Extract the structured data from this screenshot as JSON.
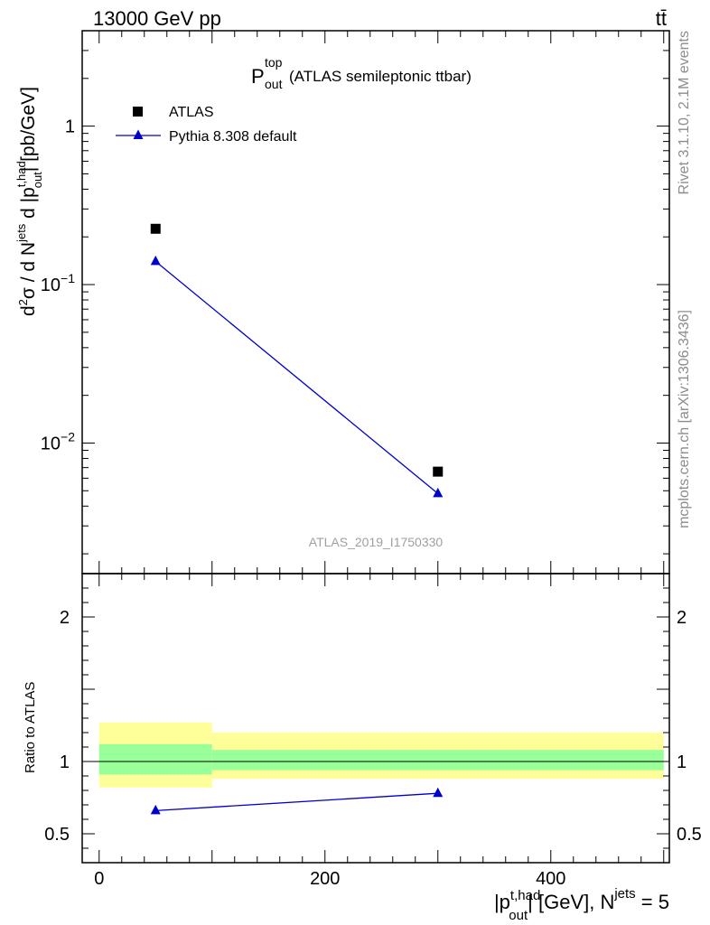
{
  "header": {
    "energy_label": "13000 GeV pp",
    "process_label": "tt̄"
  },
  "side_labels": {
    "rivet": "Rivet 3.1.10,  2.1M events",
    "mcplots": "mcplots.cern.ch [arXiv:1306.3436]"
  },
  "watermark": "ATLAS_2019_I1750330",
  "chart_data": [
    {
      "type": "scatter",
      "panel": "main",
      "title": "P_out^top (ATLAS semileptonic ttbar)",
      "title_main": "P",
      "title_sup": "top",
      "title_sub": "out",
      "title_rest": "(ATLAS semileptonic ttbar)",
      "ylabel": "d²σ / d N^jets d |p_out^t,had| [pb/GeV]",
      "y_scale": "log",
      "xlim": [
        -15,
        505
      ],
      "ylim": [
        0.0015,
        4.0
      ],
      "y_ticks": [
        {
          "value": 1,
          "label": "1"
        },
        {
          "value": 0.1,
          "label": "10^-1"
        },
        {
          "value": 0.01,
          "label": "10^-2"
        }
      ],
      "legend_position": "top-left",
      "series": [
        {
          "name": "ATLAS",
          "marker": "square",
          "color": "#000000",
          "x": [
            50,
            300
          ],
          "y": [
            0.225,
            0.0066
          ],
          "band_x_edges": [
            0,
            100,
            500
          ]
        },
        {
          "name": "Pythia 8.308 default",
          "marker": "triangle",
          "color": "#0000cc",
          "line": true,
          "x": [
            50,
            300
          ],
          "y": [
            0.14,
            0.0048
          ]
        }
      ]
    },
    {
      "type": "line",
      "panel": "ratio",
      "ylabel": "Ratio to ATLAS",
      "xlabel": "|p_out^t,had| [GeV], N^jets = 5",
      "xlim": [
        -15,
        505
      ],
      "ylim": [
        0.3,
        2.3
      ],
      "x_ticks": [
        0,
        200,
        400
      ],
      "y_ticks": [
        0.5,
        1,
        2
      ],
      "reference_line": 1.0,
      "bands": [
        {
          "x_from": 0,
          "x_to": 100,
          "stat_low": 0.91,
          "stat_high": 1.12,
          "total_low": 0.82,
          "total_high": 1.27
        },
        {
          "x_from": 100,
          "x_to": 500,
          "stat_low": 0.94,
          "stat_high": 1.08,
          "total_low": 0.88,
          "total_high": 1.2
        }
      ],
      "band_colors": {
        "stat": "#99ff99",
        "total": "#ffff99"
      },
      "series": [
        {
          "name": "Pythia 8.308 default",
          "marker": "triangle",
          "color": "#0000cc",
          "x": [
            50,
            300
          ],
          "y": [
            0.66,
            0.78
          ]
        }
      ]
    }
  ]
}
